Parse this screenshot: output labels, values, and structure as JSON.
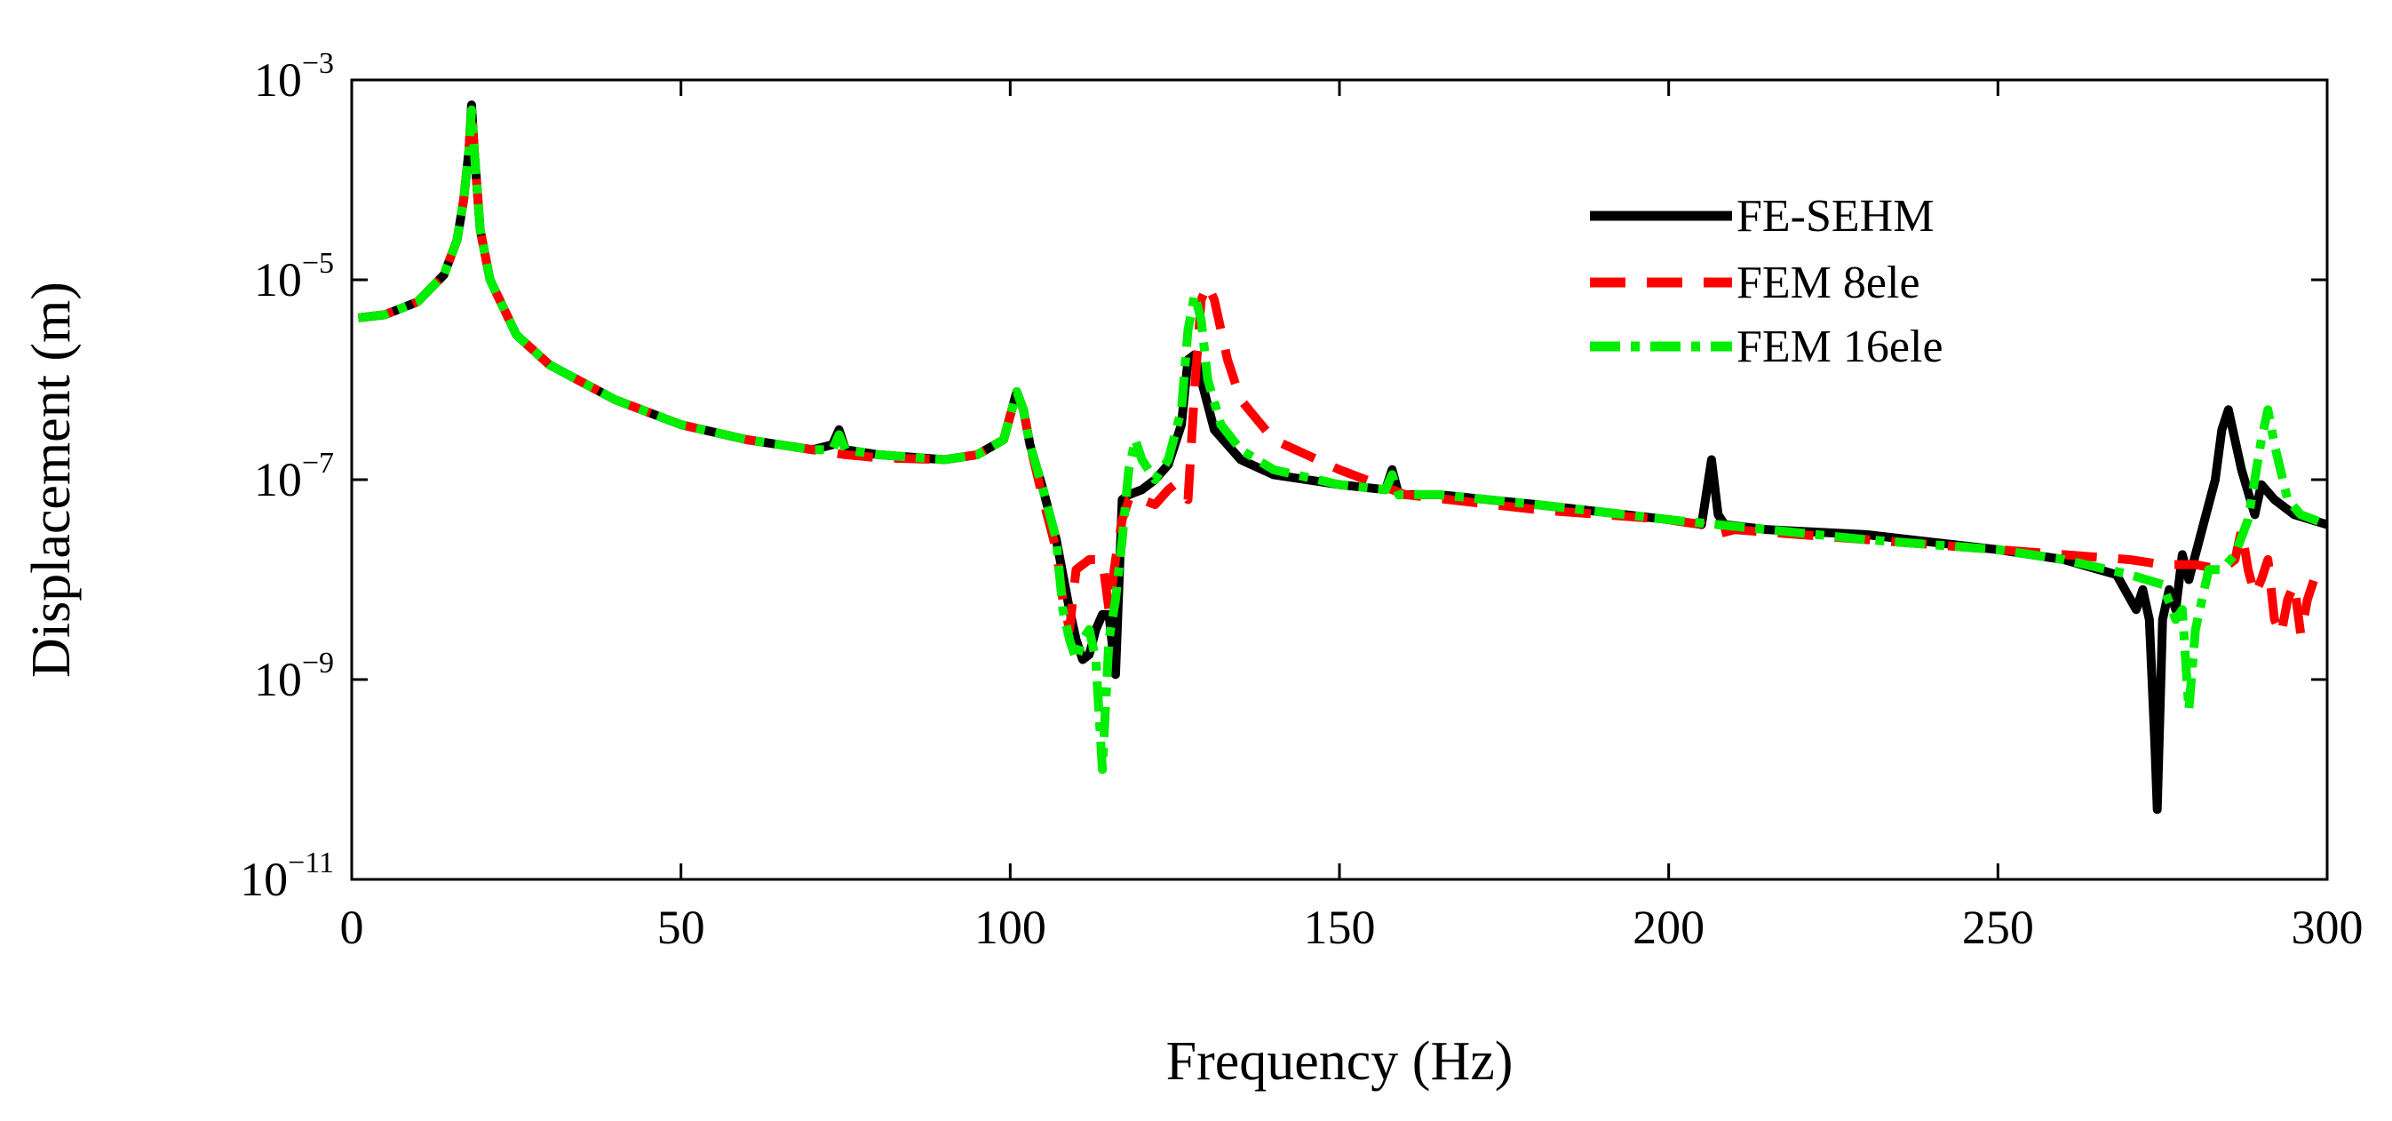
{
  "chart_data": {
    "type": "line",
    "title": "",
    "xlabel": "Frequency (Hz)",
    "ylabel": "Displacement (m)",
    "xlim": [
      0,
      300
    ],
    "ylim_log10": [
      -11,
      -3
    ],
    "yscale": "log",
    "grid": false,
    "legend_position": "top-right",
    "x_ticks": [
      0,
      50,
      100,
      150,
      200,
      250,
      300
    ],
    "y_ticks": [
      {
        "base": "10",
        "exp": "−3",
        "log10": -3
      },
      {
        "base": "10",
        "exp": "−5",
        "log10": -5
      },
      {
        "base": "10",
        "exp": "−7",
        "log10": -7
      },
      {
        "base": "10",
        "exp": "−9",
        "log10": -9
      },
      {
        "base": "10",
        "exp": "−11",
        "log10": -11
      }
    ],
    "series": [
      {
        "name": "FE-SEHM",
        "color": "#000000",
        "dash": "solid",
        "x": [
          1,
          5,
          10,
          14,
          16,
          17,
          17.8,
          18.2,
          18.6,
          19.5,
          21,
          25,
          30,
          40,
          50,
          60,
          70,
          73,
          74,
          75,
          80,
          90,
          95,
          99,
          101,
          102,
          103,
          105,
          107,
          109,
          110,
          111,
          112,
          113,
          114,
          115,
          116,
          117,
          118,
          120,
          122,
          124,
          126,
          127,
          128,
          129,
          131,
          135,
          140,
          150,
          157,
          158,
          159,
          165,
          180,
          200,
          205,
          206.5,
          207.5,
          208.5,
          215,
          230,
          250,
          260,
          268,
          271,
          272,
          273,
          273.8,
          274.2,
          275,
          276,
          277,
          278,
          279,
          281,
          283,
          284,
          285,
          287,
          289,
          290,
          292,
          295,
          300
        ],
        "y_log10": [
          -5.38,
          -5.35,
          -5.22,
          -4.95,
          -4.6,
          -4.2,
          -3.7,
          -3.25,
          -3.7,
          -4.5,
          -5.0,
          -5.55,
          -5.85,
          -6.2,
          -6.45,
          -6.6,
          -6.7,
          -6.65,
          -6.5,
          -6.7,
          -6.75,
          -6.8,
          -6.75,
          -6.6,
          -6.12,
          -6.3,
          -6.65,
          -7.1,
          -7.6,
          -8.3,
          -8.6,
          -8.8,
          -8.75,
          -8.5,
          -8.35,
          -8.35,
          -8.95,
          -7.2,
          -7.15,
          -7.1,
          -7.0,
          -6.85,
          -6.45,
          -5.8,
          -5.75,
          -6.0,
          -6.5,
          -6.8,
          -6.95,
          -7.05,
          -7.1,
          -6.9,
          -7.15,
          -7.15,
          -7.25,
          -7.4,
          -7.45,
          -6.8,
          -7.35,
          -7.45,
          -7.5,
          -7.55,
          -7.7,
          -7.8,
          -7.95,
          -8.3,
          -8.1,
          -8.4,
          -9.6,
          -10.3,
          -8.4,
          -8.1,
          -8.3,
          -7.75,
          -8.0,
          -7.5,
          -7.0,
          -6.5,
          -6.3,
          -6.9,
          -7.35,
          -7.05,
          -7.2,
          -7.35,
          -7.45
        ]
      },
      {
        "name": "FEM 8ele",
        "color": "#ff0000",
        "dash": "dashed",
        "x": [
          1,
          5,
          10,
          14,
          16,
          17,
          17.8,
          18.2,
          18.6,
          19.5,
          21,
          25,
          30,
          40,
          50,
          60,
          70,
          75,
          80,
          90,
          95,
          99,
          101,
          102,
          103,
          105,
          107,
          108,
          109,
          110,
          112,
          114,
          115,
          116,
          117,
          118,
          119,
          120,
          122,
          124,
          125,
          126,
          127,
          128,
          129,
          130,
          131,
          133,
          135,
          140,
          150,
          160,
          180,
          200,
          205,
          207,
          210,
          230,
          250,
          260,
          270,
          275,
          280,
          284,
          286,
          287,
          288,
          289,
          290,
          291,
          292,
          293,
          294,
          295,
          296,
          297,
          298,
          299,
          300
        ],
        "y_log10": [
          -5.38,
          -5.35,
          -5.22,
          -4.95,
          -4.6,
          -4.2,
          -3.7,
          -3.28,
          -3.7,
          -4.5,
          -5.0,
          -5.55,
          -5.85,
          -6.2,
          -6.45,
          -6.6,
          -6.7,
          -6.75,
          -6.78,
          -6.8,
          -6.75,
          -6.6,
          -6.12,
          -6.3,
          -6.65,
          -7.2,
          -7.7,
          -8.2,
          -8.5,
          -7.9,
          -7.8,
          -7.8,
          -8.3,
          -7.8,
          -7.4,
          -7.2,
          -7.15,
          -7.2,
          -7.25,
          -7.1,
          -7.05,
          -7.1,
          -7.2,
          -6.1,
          -5.2,
          -5.05,
          -5.2,
          -5.8,
          -6.2,
          -6.6,
          -6.9,
          -7.15,
          -7.3,
          -7.4,
          -7.45,
          -7.55,
          -7.5,
          -7.6,
          -7.7,
          -7.75,
          -7.8,
          -7.85,
          -7.85,
          -7.9,
          -7.8,
          -7.5,
          -7.9,
          -8.15,
          -8.0,
          -7.8,
          -8.4,
          -8.55,
          -8.2,
          -8.05,
          -8.55,
          -8.2,
          -8.0,
          -7.95,
          -7.95
        ]
      },
      {
        "name": "FEM 16ele",
        "color": "#00ee00",
        "dash": "dashdot",
        "x": [
          1,
          5,
          10,
          14,
          16,
          17,
          17.8,
          18.2,
          18.6,
          19.5,
          21,
          25,
          30,
          40,
          50,
          60,
          70,
          73,
          74,
          75,
          80,
          90,
          95,
          99,
          101,
          102,
          103,
          105,
          107,
          108,
          109,
          110,
          111,
          112,
          113,
          114,
          115,
          116,
          117,
          118,
          119,
          120,
          122,
          124,
          126,
          127,
          128,
          129,
          130,
          132,
          135,
          140,
          150,
          157,
          158,
          159,
          165,
          180,
          200,
          230,
          250,
          260,
          270,
          275,
          277,
          278,
          279,
          280,
          282,
          284,
          286,
          288,
          290,
          291,
          292,
          294,
          296,
          298,
          300
        ],
        "y_log10": [
          -5.38,
          -5.35,
          -5.22,
          -4.95,
          -4.6,
          -4.2,
          -3.7,
          -3.3,
          -3.7,
          -4.5,
          -5.0,
          -5.55,
          -5.85,
          -6.2,
          -6.45,
          -6.6,
          -6.7,
          -6.7,
          -6.55,
          -6.7,
          -6.75,
          -6.8,
          -6.75,
          -6.6,
          -6.12,
          -6.3,
          -6.65,
          -7.1,
          -7.6,
          -8.3,
          -8.6,
          -8.8,
          -8.6,
          -8.5,
          -8.8,
          -9.9,
          -8.6,
          -8.2,
          -7.6,
          -6.9,
          -6.6,
          -6.8,
          -7.0,
          -6.8,
          -6.3,
          -5.5,
          -5.15,
          -5.4,
          -6.0,
          -6.45,
          -6.7,
          -6.9,
          -7.05,
          -7.1,
          -6.95,
          -7.15,
          -7.15,
          -7.25,
          -7.4,
          -7.6,
          -7.7,
          -7.8,
          -7.95,
          -8.05,
          -8.4,
          -8.3,
          -9.3,
          -8.5,
          -7.9,
          -7.9,
          -7.75,
          -7.4,
          -6.6,
          -6.3,
          -6.65,
          -7.2,
          -7.35,
          -7.4,
          -7.45
        ]
      }
    ]
  }
}
